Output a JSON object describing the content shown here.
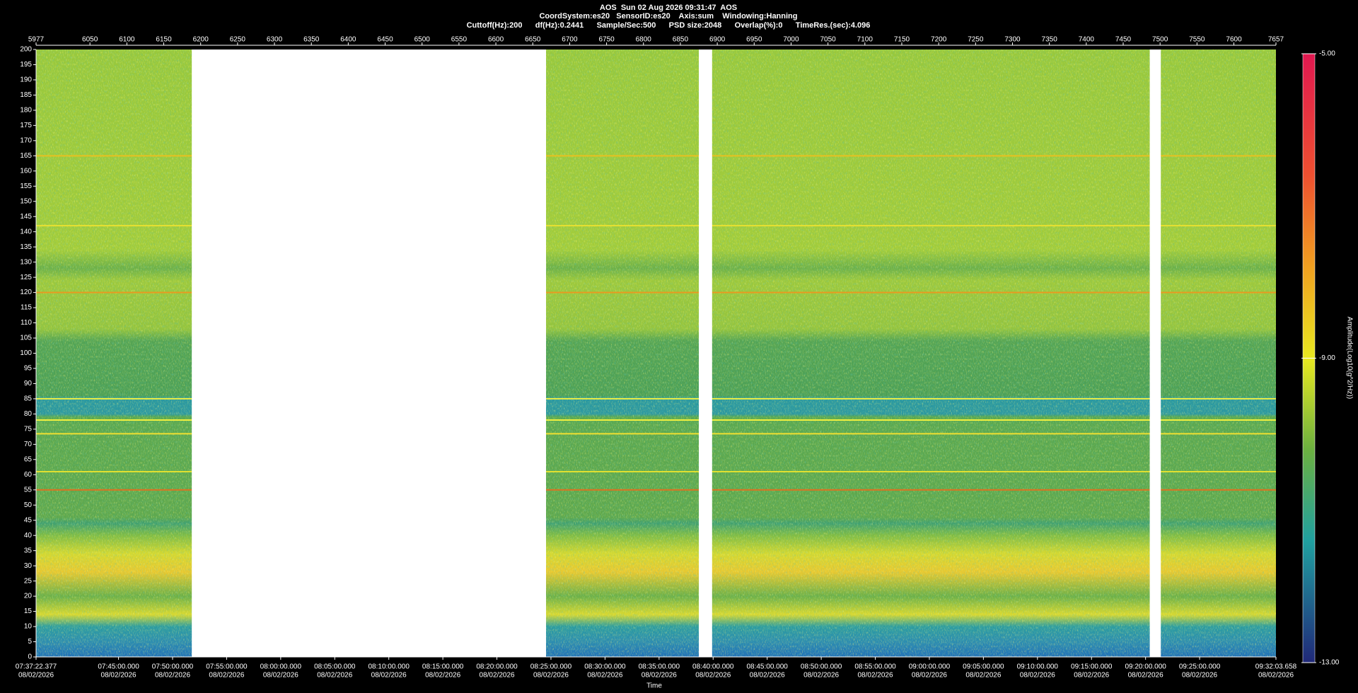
{
  "header": {
    "lines": [
      "AOS  Sun 02 Aug 2026 09:31:47  AOS",
      "CoordSystem:es20   SensorID:es20    Axis:sum    Windowing:Hanning",
      "Cuttoff(Hz):200      df(Hz):0.2441      Sample/Sec:500      PSD size:2048      Overlap(%):0      TimeRes.(sec):4.096"
    ]
  },
  "chart_data": {
    "type": "spectrogram",
    "x_label": "Time",
    "date": "08/02/2026",
    "x2lim": [
      5977,
      7657
    ],
    "x2ticks": [
      5977,
      6050,
      6100,
      6150,
      6200,
      6250,
      6300,
      6350,
      6400,
      6450,
      6500,
      6550,
      6600,
      6650,
      6700,
      6750,
      6800,
      6850,
      6900,
      6950,
      7000,
      7050,
      7100,
      7150,
      7200,
      7250,
      7300,
      7350,
      7400,
      7450,
      7500,
      7550,
      7600,
      7657
    ],
    "xticks": [
      {
        "value": 5977,
        "label": "07:37:22.377"
      },
      {
        "value": 6088.72,
        "label": "07:45:00.000"
      },
      {
        "value": 6161.97,
        "label": "07:50:00.000"
      },
      {
        "value": 6235.21,
        "label": "07:55:00.000"
      },
      {
        "value": 6308.45,
        "label": "08:00:00.000"
      },
      {
        "value": 6381.69,
        "label": "08:05:00.000"
      },
      {
        "value": 6454.94,
        "label": "08:10:00.000"
      },
      {
        "value": 6528.18,
        "label": "08:15:00.000"
      },
      {
        "value": 6601.42,
        "label": "08:20:00.000"
      },
      {
        "value": 6674.66,
        "label": "08:25:00.000"
      },
      {
        "value": 6747.91,
        "label": "08:30:00.000"
      },
      {
        "value": 6821.15,
        "label": "08:35:00.000"
      },
      {
        "value": 6894.39,
        "label": "08:40:00.000"
      },
      {
        "value": 6967.63,
        "label": "08:45:00.000"
      },
      {
        "value": 7040.88,
        "label": "08:50:00.000"
      },
      {
        "value": 7114.12,
        "label": "08:55:00.000"
      },
      {
        "value": 7187.36,
        "label": "09:00:00.000"
      },
      {
        "value": 7260.6,
        "label": "09:05:00.000"
      },
      {
        "value": 7333.85,
        "label": "09:10:00.000"
      },
      {
        "value": 7407.09,
        "label": "09:15:00.000"
      },
      {
        "value": 7480.33,
        "label": "09:20:00.000"
      },
      {
        "value": 7553.57,
        "label": "09:25:00.000"
      },
      {
        "value": 7657,
        "label": "09:32:03.658"
      }
    ],
    "ylim": [
      0,
      200
    ],
    "yticks": [
      0,
      5,
      10,
      15,
      20,
      25,
      30,
      35,
      40,
      45,
      50,
      55,
      60,
      65,
      70,
      75,
      80,
      85,
      90,
      95,
      100,
      105,
      110,
      115,
      120,
      125,
      130,
      135,
      140,
      145,
      150,
      155,
      160,
      165,
      170,
      175,
      180,
      185,
      190,
      195,
      200
    ],
    "no_data": [
      [
        6188,
        6668
      ],
      [
        6875,
        6893
      ],
      [
        7486,
        7501
      ]
    ],
    "spectral_lines": [
      {
        "freq": 165,
        "color": "#e8c020"
      },
      {
        "freq": 142,
        "color": "#e8e030"
      },
      {
        "freq": 120,
        "color": "#e89a20"
      },
      {
        "freq": 85,
        "color": "#f0f040"
      },
      {
        "freq": 78,
        "color": "#f0f040"
      },
      {
        "freq": 73.5,
        "color": "#f0e030"
      },
      {
        "freq": 61,
        "color": "#e0e030"
      },
      {
        "freq": 55,
        "color": "#e07020"
      }
    ],
    "colorbar": {
      "label": "Amplitude(Log10(g^2/Hz))",
      "lim": [
        -13,
        -5
      ],
      "ticks": [
        {
          "value": -5,
          "label": "-5.00"
        },
        {
          "value": -9,
          "label": "-9.00"
        },
        {
          "value": -13,
          "label": "-13.00"
        }
      ]
    }
  }
}
